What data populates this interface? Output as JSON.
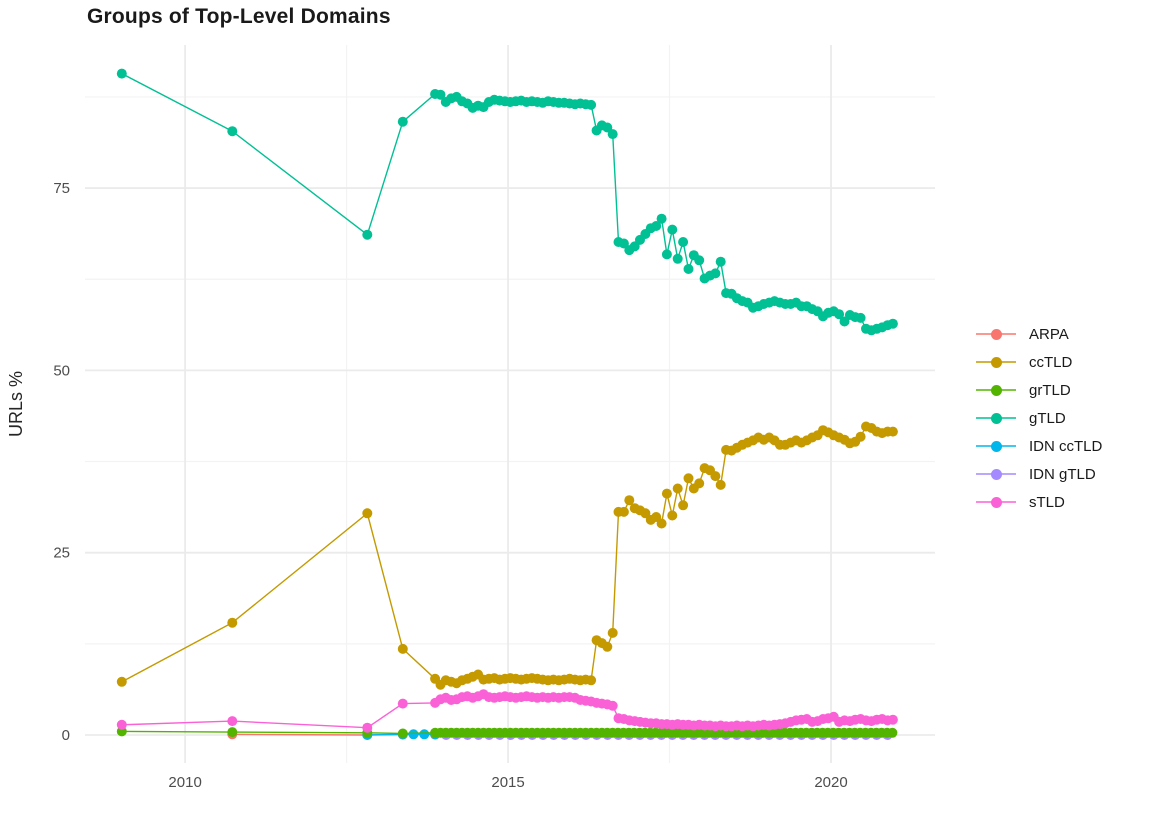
{
  "chart_data": {
    "type": "line",
    "title": "Groups of Top-Level Domains",
    "xlabel": "",
    "ylabel": "URLs %",
    "grid": true,
    "legend_position": "right",
    "x_domain": [
      2008.45,
      2021.61
    ],
    "y_domain": [
      -3.84,
      94.62
    ],
    "x_ticks": [
      2010,
      2015,
      2020
    ],
    "x_tick_labels": [
      "2010",
      "2015",
      "2020"
    ],
    "x_minor_ticks": [
      2012.5,
      2017.5
    ],
    "y_ticks": [
      0,
      25,
      50,
      75
    ],
    "y_tick_labels": [
      "0",
      "25",
      "50",
      "75"
    ],
    "y_minor_ticks": [
      12.5,
      37.5,
      62.5,
      87.5
    ],
    "draw_order": [
      "ARPA",
      "IDN ccTLD",
      "IDN gTLD",
      "grTLD",
      "ccTLD",
      "gTLD",
      "sTLD"
    ],
    "series": [
      {
        "name": "ARPA",
        "color": "#F8766D",
        "anchors": [
          [
            2010.73,
            0.1
          ],
          [
            2012.82,
            0.0
          ]
        ],
        "runs": [
          {
            "x0": 2013.37,
            "dx": 0.5,
            "n": 16,
            "y_const": 0.05
          }
        ]
      },
      {
        "name": "ccTLD",
        "color": "#C49A00",
        "anchors": [
          [
            2009.02,
            7.3
          ],
          [
            2010.73,
            15.4
          ],
          [
            2012.82,
            30.4
          ],
          [
            2013.37,
            11.8
          ]
        ],
        "runs": [
          {
            "x0": 2013.87,
            "dx": 0.0833,
            "y": [
              7.7,
              6.9,
              7.5,
              7.3,
              7.1,
              7.5,
              7.7,
              8.0,
              8.3,
              7.6,
              7.7,
              7.8,
              7.6,
              7.7,
              7.8,
              7.7,
              7.6,
              7.7,
              7.8,
              7.7,
              7.6,
              7.5,
              7.6,
              7.5,
              7.6,
              7.7,
              7.6,
              7.5,
              7.6,
              7.5
            ]
          },
          {
            "x0": 2016.37,
            "dx": 0.0833,
            "y": [
              13.0,
              12.6,
              12.1,
              14.0
            ]
          },
          {
            "x0": 2016.71,
            "dx": 0.0833,
            "y": [
              30.6,
              30.6,
              32.2,
              31.1,
              30.8,
              30.4,
              29.5,
              29.9,
              29.0,
              33.1,
              30.1,
              33.8,
              31.5,
              35.2,
              33.8,
              34.5,
              36.6,
              36.3,
              35.5,
              34.3,
              39.1,
              39.0,
              39.4,
              39.8,
              40.1,
              40.4,
              40.8,
              40.5,
              40.8,
              40.4,
              39.8,
              39.8,
              40.1,
              40.4,
              40.1,
              40.4,
              40.8,
              41.1,
              41.8,
              41.5,
              41.1,
              40.8,
              40.5,
              40.0,
              40.2,
              40.9,
              42.3,
              42.1,
              41.6,
              41.4,
              41.6,
              41.6
            ]
          }
        ]
      },
      {
        "name": "grTLD",
        "color": "#53B400",
        "anchors": [
          [
            2009.02,
            0.5
          ],
          [
            2010.73,
            0.4
          ],
          [
            2012.82,
            0.3
          ],
          [
            2013.37,
            0.2
          ]
        ],
        "runs": [
          {
            "x0": 2013.87,
            "dx": 0.0833,
            "n": 86,
            "y_const": 0.3
          }
        ]
      },
      {
        "name": "gTLD",
        "color": "#00C094",
        "anchors": [
          [
            2009.02,
            90.7
          ],
          [
            2010.73,
            82.8
          ],
          [
            2012.82,
            68.6
          ],
          [
            2013.37,
            84.1
          ]
        ],
        "runs": [
          {
            "x0": 2013.87,
            "dx": 0.0833,
            "y": [
              87.9,
              87.8,
              86.8,
              87.3,
              87.5,
              86.9,
              86.6,
              86.0,
              86.3,
              86.1,
              86.8,
              87.1,
              87.0,
              86.9,
              86.8,
              86.9,
              87.0,
              86.8,
              86.9,
              86.8,
              86.7,
              86.9,
              86.8,
              86.7,
              86.7,
              86.6,
              86.5,
              86.6,
              86.5,
              86.4
            ]
          },
          {
            "x0": 2016.37,
            "dx": 0.0833,
            "y": [
              82.9,
              83.6,
              83.3,
              82.4
            ]
          },
          {
            "x0": 2016.71,
            "dx": 0.0833,
            "y": [
              67.6,
              67.4,
              66.5,
              67.0,
              67.9,
              68.7,
              69.5,
              69.8,
              70.8,
              65.9,
              69.3,
              65.3,
              67.6,
              63.9,
              65.8,
              65.1,
              62.6,
              63.0,
              63.3,
              64.9,
              60.6,
              60.5,
              59.9,
              59.5,
              59.3,
              58.6,
              58.8,
              59.1,
              59.3,
              59.5,
              59.3,
              59.1,
              59.1,
              59.3,
              58.8,
              58.8,
              58.4,
              58.1,
              57.4,
              57.9,
              58.1,
              57.7,
              56.7,
              57.6,
              57.3,
              57.2,
              55.7,
              55.5,
              55.7,
              55.9,
              56.2,
              56.4
            ]
          }
        ]
      },
      {
        "name": "IDN ccTLD",
        "color": "#00B6EB",
        "anchors": [
          [
            2012.82,
            0.02
          ]
        ],
        "runs": [
          {
            "x0": 2013.37,
            "dx": 0.1667,
            "n": 46,
            "y_const": 0.1
          }
        ]
      },
      {
        "name": "IDN gTLD",
        "color": "#A58AFF",
        "anchors": [],
        "runs": [
          {
            "x0": 2014.04,
            "dx": 0.1667,
            "n": 42,
            "y_const": 0.0
          }
        ]
      },
      {
        "name": "sTLD",
        "color": "#FB61D7",
        "anchors": [
          [
            2009.02,
            1.4
          ],
          [
            2010.73,
            1.9
          ],
          [
            2012.82,
            1.0
          ],
          [
            2013.37,
            4.3
          ]
        ],
        "runs": [
          {
            "x0": 2013.87,
            "dx": 0.0833,
            "y": [
              4.4,
              4.9,
              5.1,
              4.8,
              4.9,
              5.2,
              5.3,
              5.1,
              5.3,
              5.6,
              5.2,
              5.1,
              5.2,
              5.3,
              5.2,
              5.1,
              5.2,
              5.3,
              5.2,
              5.1,
              5.2,
              5.1,
              5.2,
              5.1,
              5.2,
              5.2,
              5.1,
              4.8,
              4.7,
              4.6
            ]
          },
          {
            "x0": 2016.37,
            "dx": 0.0833,
            "y": [
              4.4,
              4.3,
              4.2,
              4.0
            ]
          },
          {
            "x0": 2016.71,
            "dx": 0.0833,
            "y": [
              2.3,
              2.2,
              2.0,
              1.9,
              1.8,
              1.7,
              1.6,
              1.6,
              1.5,
              1.5,
              1.4,
              1.5,
              1.4,
              1.4,
              1.3,
              1.4,
              1.3,
              1.3,
              1.2,
              1.3,
              1.2,
              1.2,
              1.3,
              1.2,
              1.3,
              1.2,
              1.3,
              1.4,
              1.3,
              1.4,
              1.5,
              1.6,
              1.8,
              2.0,
              2.1,
              2.2,
              1.8,
              1.9,
              2.2,
              2.3,
              2.5,
              1.8,
              2.0,
              1.9,
              2.1,
              2.2,
              2.0,
              1.9,
              2.1,
              2.2,
              2.0,
              2.1
            ]
          }
        ]
      }
    ],
    "style": {
      "background": "#ffffff",
      "grid_major_color": "#EBEBEB",
      "grid_minor_color": "#F3F3F3",
      "title_color": "#1a1a1a",
      "tick_color": "#4d4d4d"
    }
  }
}
